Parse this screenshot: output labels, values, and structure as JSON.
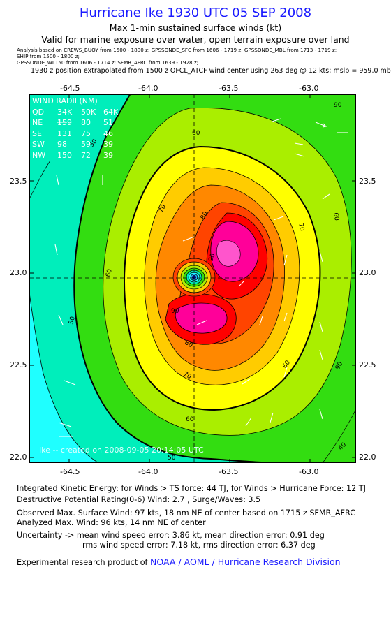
{
  "header": {
    "title": "Hurricane Ike 1930 UTC 05 SEP 2008",
    "subtitle": "Max 1-min sustained surface winds (kt)",
    "validity": "Valid for marine exposure over water, open terrain exposure over land",
    "analysis_lines": [
      "Analysis based on  CREWS_BUOY from 1500 - 1800 z;  GPSSONDE_SFC from 1606 - 1719 z;  GPSSONDE_MBL from 1713 - 1719 z;",
      "SHIP from 1500 - 1800 z;",
      "GPSSONDE_WL150 from 1606 - 1714 z;  SFMR_AFRC from 1639 - 1928 z;"
    ],
    "extrapolation": "1930 z position extrapolated from 1500 z OFCL_ATCF wind center using 263 deg @ 12 kts; mslp = 959.0 mb"
  },
  "map": {
    "x_ticks_top": [
      "-64.5",
      "-64.0",
      "-63.5",
      "-63.0"
    ],
    "x_ticks_bottom": [
      "-64.5",
      "-64.0",
      "-63.5",
      "-63.0"
    ],
    "y_ticks_left": [
      "23.5",
      "23.0",
      "22.5",
      "22.0"
    ],
    "y_ticks_right": [
      "23.5",
      "23.0",
      "22.5",
      "22.0"
    ],
    "lon_range": [
      -64.67,
      -62.75
    ],
    "lat_range": [
      21.97,
      23.93
    ],
    "center": {
      "lon": -63.73,
      "lat": 22.97
    },
    "contour_labels": [
      "90",
      "60",
      "50",
      "70",
      "60",
      "80",
      "60",
      "70",
      "90",
      "50",
      "80",
      "90",
      "90",
      "70",
      "60",
      "60",
      "50",
      "40"
    ],
    "colors": {
      "cyan": "#1fffff",
      "teal": "#00eebb",
      "green": "#33dd11",
      "lightgreen": "#aaee00",
      "yellow": "#ffff00",
      "gold": "#ffcc00",
      "orange": "#ff8800",
      "redorange": "#ff4400",
      "red": "#ff0000",
      "magenta": "#ff0099",
      "pink": "#ff55cc"
    },
    "wind_radii": {
      "title": "WIND RADII (NM)",
      "header": [
        "QD",
        "34K",
        "50K",
        "64K"
      ],
      "rows": [
        [
          "NE",
          "159",
          "80",
          "51"
        ],
        [
          "SE",
          "131",
          "75",
          "46"
        ],
        [
          "SW",
          "98",
          "59",
          "39"
        ],
        [
          "NW",
          "150",
          "72",
          "39"
        ]
      ]
    },
    "credit": "Ike -- created on 2008-09-05 20:14:05 UTC"
  },
  "footer": {
    "ike": "Integrated Kinetic Energy:  for Winds > TS force: 44 TJ,  for Winds > Hurricane Force: 12 TJ",
    "dpr": "Destructive Potential Rating(0-6)   Wind: 2.7 , Surge/Waves: 3.5",
    "observed": "Observed Max. Surface Wind: 97 kts, 18 nm NE of center based on 1715 z SFMR_AFRC",
    "analyzed": "Analyzed Max. Wind: 96 kts, 14 nm NE of center",
    "uncert1": "Uncertainty -> mean wind speed error: 3.86 kt,   mean direction error: 0.91 deg",
    "uncert2": "rms wind speed error: 7.18 kt,   rms direction error: 6.37 deg",
    "product_prefix": "Experimental research product of",
    "product_org": "NOAA / AOML / Hurricane Research Division"
  }
}
